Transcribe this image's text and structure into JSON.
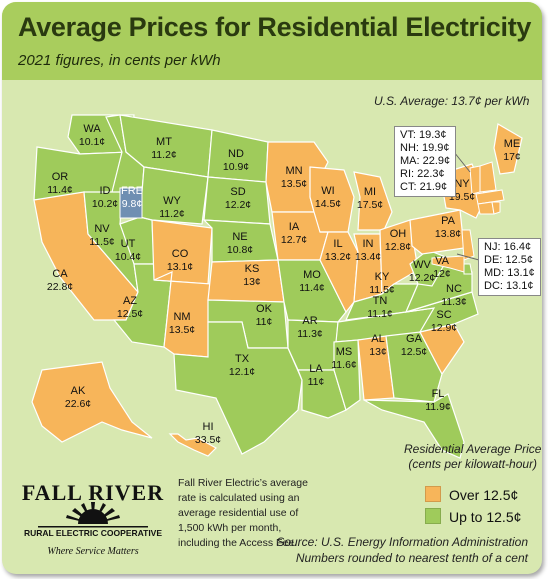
{
  "header": {
    "title": "Average Prices for Residential Electricity",
    "subtitle": "2021 figures, in cents per kWh"
  },
  "us_average": "U.S. Average: 13.7¢ per kWh",
  "colors": {
    "over": "#f7b55a",
    "under": "#9fcb5b",
    "highlight": "#6f8fb2",
    "background": "#d8e8b0",
    "header": "#a9cd5d"
  },
  "states": [
    {
      "abbr": "WA",
      "value": "10.1¢",
      "category": "under"
    },
    {
      "abbr": "OR",
      "value": "11.4¢",
      "category": "under"
    },
    {
      "abbr": "CA",
      "value": "22.8¢",
      "category": "over"
    },
    {
      "abbr": "ID",
      "value": "10.2¢",
      "category": "under"
    },
    {
      "abbr": "FRE",
      "value": "9.8¢",
      "category": "highlight"
    },
    {
      "abbr": "NV",
      "value": "11.5¢",
      "category": "under"
    },
    {
      "abbr": "UT",
      "value": "10.4¢",
      "category": "under"
    },
    {
      "abbr": "AZ",
      "value": "12.5¢",
      "category": "under"
    },
    {
      "abbr": "MT",
      "value": "11.2¢",
      "category": "under"
    },
    {
      "abbr": "WY",
      "value": "11.2¢",
      "category": "under"
    },
    {
      "abbr": "CO",
      "value": "13.1¢",
      "category": "over"
    },
    {
      "abbr": "NM",
      "value": "13.5¢",
      "category": "over"
    },
    {
      "abbr": "ND",
      "value": "10.9¢",
      "category": "under"
    },
    {
      "abbr": "SD",
      "value": "12.2¢",
      "category": "under"
    },
    {
      "abbr": "NE",
      "value": "10.8¢",
      "category": "under"
    },
    {
      "abbr": "KS",
      "value": "13¢",
      "category": "over"
    },
    {
      "abbr": "OK",
      "value": "11¢",
      "category": "under"
    },
    {
      "abbr": "TX",
      "value": "12.1¢",
      "category": "under"
    },
    {
      "abbr": "MN",
      "value": "13.5¢",
      "category": "over"
    },
    {
      "abbr": "IA",
      "value": "12.7¢",
      "category": "over"
    },
    {
      "abbr": "MO",
      "value": "11.4¢",
      "category": "under"
    },
    {
      "abbr": "AR",
      "value": "11.3¢",
      "category": "under"
    },
    {
      "abbr": "LA",
      "value": "11¢",
      "category": "under"
    },
    {
      "abbr": "WI",
      "value": "14.5¢",
      "category": "over"
    },
    {
      "abbr": "IL",
      "value": "13.2¢",
      "category": "over"
    },
    {
      "abbr": "MI",
      "value": "17.5¢",
      "category": "over"
    },
    {
      "abbr": "IN",
      "value": "13.4¢",
      "category": "over"
    },
    {
      "abbr": "OH",
      "value": "12.8¢",
      "category": "over"
    },
    {
      "abbr": "KY",
      "value": "11.5¢",
      "category": "under"
    },
    {
      "abbr": "TN",
      "value": "11.1¢",
      "category": "under"
    },
    {
      "abbr": "MS",
      "value": "11.6¢",
      "category": "under"
    },
    {
      "abbr": "AL",
      "value": "13¢",
      "category": "over"
    },
    {
      "abbr": "GA",
      "value": "12.5¢",
      "category": "under"
    },
    {
      "abbr": "FL",
      "value": "11.9¢",
      "category": "under"
    },
    {
      "abbr": "SC",
      "value": "12.9¢",
      "category": "over"
    },
    {
      "abbr": "NC",
      "value": "11.3¢",
      "category": "under"
    },
    {
      "abbr": "VA",
      "value": "12¢",
      "category": "under"
    },
    {
      "abbr": "WV",
      "value": "12.2¢",
      "category": "under"
    },
    {
      "abbr": "PA",
      "value": "13.8¢",
      "category": "over"
    },
    {
      "abbr": "NY",
      "value": "19.5¢",
      "category": "over"
    },
    {
      "abbr": "ME",
      "value": "17¢",
      "category": "over"
    },
    {
      "abbr": "AK",
      "value": "22.6¢",
      "category": "over"
    },
    {
      "abbr": "HI",
      "value": "33.5¢",
      "category": "over"
    }
  ],
  "northeast_callout": [
    {
      "abbr": "VT",
      "value": "19.3¢",
      "category": "over"
    },
    {
      "abbr": "NH",
      "value": "19.9¢",
      "category": "over"
    },
    {
      "abbr": "MA",
      "value": "22.9¢",
      "category": "over"
    },
    {
      "abbr": "RI",
      "value": "22.3¢",
      "category": "over"
    },
    {
      "abbr": "CT",
      "value": "21.9¢",
      "category": "over"
    }
  ],
  "midatlantic_callout": [
    {
      "abbr": "NJ",
      "value": "16.4¢",
      "category": "over"
    },
    {
      "abbr": "DE",
      "value": "12.5¢",
      "category": "under"
    },
    {
      "abbr": "MD",
      "value": "13.1¢",
      "category": "over"
    },
    {
      "abbr": "DC",
      "value": "13.1¢",
      "category": "over"
    }
  ],
  "legend": {
    "title_line1": "Residential Average Price",
    "title_line2": "(cents per kilowatt-hour)",
    "over_label": "Over 12.5¢",
    "under_label": "Up to 12.5¢"
  },
  "note": "Fall River Electric’s average rate is calculated using an average residential use of 1,500 kWh per month, including the Access Fee.",
  "source_line1": "Source: U.S. Energy Information Administration",
  "source_line2": "Numbers rounded to nearest tenth of a cent",
  "logo": {
    "name": "FALL RIVER",
    "coop": "RURAL ELECTRIC COOPERATIVE",
    "tagline": "Where Service Matters"
  }
}
